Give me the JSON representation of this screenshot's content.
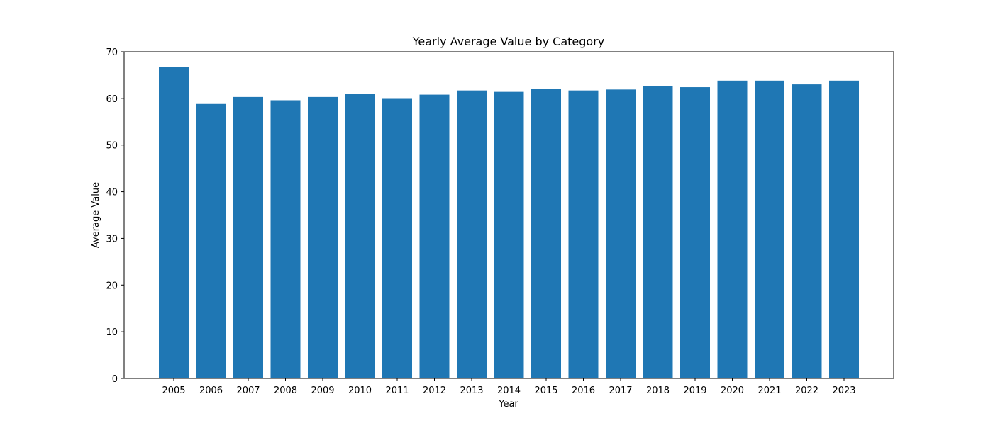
{
  "chart_data": {
    "type": "bar",
    "title": "Yearly Average Value by Category",
    "xlabel": "Year",
    "ylabel": "Average Value",
    "categories": [
      "2005",
      "2006",
      "2007",
      "2008",
      "2009",
      "2010",
      "2011",
      "2012",
      "2013",
      "2014",
      "2015",
      "2016",
      "2017",
      "2018",
      "2019",
      "2020",
      "2021",
      "2022",
      "2023"
    ],
    "values": [
      66.8,
      58.8,
      60.3,
      59.6,
      60.3,
      60.9,
      59.9,
      60.8,
      61.7,
      61.4,
      62.1,
      61.7,
      61.9,
      62.6,
      62.4,
      63.8,
      63.8,
      63.0,
      63.8
    ],
    "ylim": [
      0,
      70
    ],
    "yticks": [
      0,
      10,
      20,
      30,
      40,
      50,
      60,
      70
    ],
    "grid": false,
    "legend": "none",
    "colors": {
      "bar": "#1f77b4",
      "axis": "#000000",
      "background": "#ffffff"
    }
  }
}
